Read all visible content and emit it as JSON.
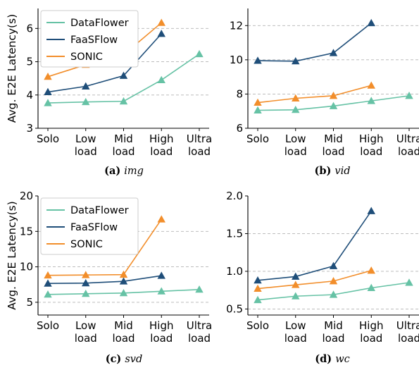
{
  "chart_data": [
    {
      "id": "a",
      "type": "line",
      "caption_label": "(a)",
      "caption_name": "img",
      "ylabel": "Avg. E2E Latency(s)",
      "categories": [
        [
          "Solo"
        ],
        [
          "Low",
          "load"
        ],
        [
          "Mid",
          "load"
        ],
        [
          "High",
          "load"
        ],
        [
          "Ultra",
          "load"
        ]
      ],
      "ylim": [
        3,
        6.6
      ],
      "yticks": [
        3,
        4,
        5,
        6
      ],
      "grid": "horizontal-dashed",
      "legend": "top-left",
      "series": [
        {
          "name": "DataFlower",
          "color": "#66c2a5",
          "values": [
            3.76,
            3.79,
            3.81,
            4.45,
            5.23
          ]
        },
        {
          "name": "FaaSFlow",
          "color": "#1f4e79",
          "values": [
            4.09,
            4.26,
            4.58,
            5.84,
            null
          ]
        },
        {
          "name": "SONIC",
          "color": "#f28e2b",
          "values": [
            4.55,
            4.91,
            5.21,
            6.17,
            null
          ]
        }
      ]
    },
    {
      "id": "b",
      "type": "line",
      "caption_label": "(b)",
      "caption_name": "vid",
      "ylabel": "",
      "categories": [
        [
          "Solo"
        ],
        [
          "Low",
          "load"
        ],
        [
          "Mid",
          "load"
        ],
        [
          "High",
          "load"
        ],
        [
          "Ultra",
          "load"
        ]
      ],
      "ylim": [
        6,
        13
      ],
      "yticks": [
        6,
        8,
        10,
        12
      ],
      "grid": "horizontal-dashed",
      "legend": "none",
      "series": [
        {
          "name": "DataFlower",
          "color": "#66c2a5",
          "values": [
            7.05,
            7.08,
            7.3,
            7.6,
            7.9
          ]
        },
        {
          "name": "FaaSFlow",
          "color": "#1f4e79",
          "values": [
            9.95,
            9.92,
            10.4,
            12.15,
            null
          ]
        },
        {
          "name": "SONIC",
          "color": "#f28e2b",
          "values": [
            7.5,
            7.75,
            7.9,
            8.5,
            null
          ]
        }
      ]
    },
    {
      "id": "c",
      "type": "line",
      "caption_label": "(c)",
      "caption_name": "svd",
      "ylabel": "Avg. E2E Latency(s)",
      "categories": [
        [
          "Solo"
        ],
        [
          "Low",
          "load"
        ],
        [
          "Mid",
          "load"
        ],
        [
          "High",
          "load"
        ],
        [
          "Ultra",
          "load"
        ]
      ],
      "ylim": [
        3.2,
        20
      ],
      "yticks": [
        5,
        10,
        15,
        20
      ],
      "grid": "horizontal-dashed",
      "legend": "top-left",
      "series": [
        {
          "name": "DataFlower",
          "color": "#66c2a5",
          "values": [
            6.1,
            6.2,
            6.3,
            6.55,
            6.8
          ]
        },
        {
          "name": "FaaSFlow",
          "color": "#1f4e79",
          "values": [
            7.65,
            7.7,
            7.95,
            8.75,
            null
          ]
        },
        {
          "name": "SONIC",
          "color": "#f28e2b",
          "values": [
            8.8,
            8.85,
            8.9,
            16.7,
            null
          ]
        }
      ]
    },
    {
      "id": "d",
      "type": "line",
      "caption_label": "(d)",
      "caption_name": "wc",
      "ylabel": "",
      "categories": [
        [
          "Solo"
        ],
        [
          "Low",
          "load"
        ],
        [
          "Mid",
          "load"
        ],
        [
          "High",
          "load"
        ],
        [
          "Ultra",
          "load"
        ]
      ],
      "ylim": [
        0.42,
        2.0
      ],
      "yticks": [
        0.5,
        1.0,
        1.5,
        2.0
      ],
      "ytick_labels": [
        "0.5",
        "1.0",
        "1.5",
        "2.0"
      ],
      "grid": "horizontal-dashed",
      "legend": "none",
      "series": [
        {
          "name": "DataFlower",
          "color": "#66c2a5",
          "values": [
            0.62,
            0.67,
            0.69,
            0.78,
            0.85
          ]
        },
        {
          "name": "FaaSFlow",
          "color": "#1f4e79",
          "values": [
            0.88,
            0.93,
            1.07,
            1.8,
            null
          ]
        },
        {
          "name": "SONIC",
          "color": "#f28e2b",
          "values": [
            0.77,
            0.82,
            0.87,
            1.01,
            null
          ]
        }
      ]
    }
  ]
}
